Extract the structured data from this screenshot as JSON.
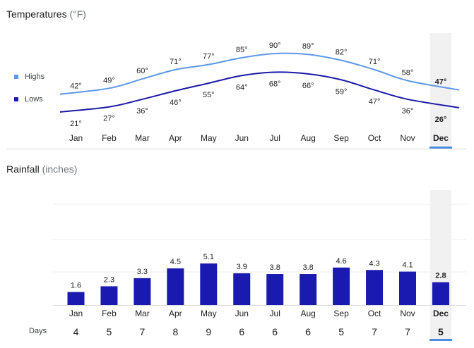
{
  "temperatures": {
    "title": "Temperatures",
    "unit": "(°F)",
    "legend": {
      "highs": "Highs",
      "lows": "Lows"
    }
  },
  "rainfall": {
    "title": "Rainfall",
    "unit": "(inches)"
  },
  "days_label": "Days",
  "selected_month": "Dec",
  "colors": {
    "highs": "#5c98e9",
    "lows": "#1a1aa8",
    "bars": "#1a1ab0",
    "selected_band": "#f1f1f1",
    "selected_underline": "#4a8de0"
  },
  "chart_data": [
    {
      "type": "line",
      "title": "Temperatures (°F)",
      "categories": [
        "Jan",
        "Feb",
        "Mar",
        "Apr",
        "May",
        "Jun",
        "Jul",
        "Aug",
        "Sep",
        "Oct",
        "Nov",
        "Dec"
      ],
      "series": [
        {
          "name": "Highs",
          "values": [
            42,
            49,
            60,
            71,
            77,
            85,
            90,
            89,
            82,
            71,
            58,
            47
          ],
          "labels": [
            "42°",
            "49°",
            "60°",
            "71°",
            "77°",
            "85°",
            "90°",
            "89°",
            "82°",
            "71°",
            "58°",
            "47°"
          ]
        },
        {
          "name": "Lows",
          "values": [
            21,
            27,
            36,
            46,
            55,
            64,
            68,
            66,
            59,
            47,
            36,
            26
          ],
          "labels": [
            "21°",
            "27°",
            "36°",
            "46°",
            "55°",
            "64°",
            "68°",
            "66°",
            "59°",
            "47°",
            "36°",
            "26°"
          ]
        }
      ]
    },
    {
      "type": "bar",
      "title": "Rainfall (inches)",
      "categories": [
        "Jan",
        "Feb",
        "Mar",
        "Apr",
        "May",
        "Jun",
        "Jul",
        "Aug",
        "Sep",
        "Oct",
        "Nov",
        "Dec"
      ],
      "values": [
        1.6,
        2.3,
        3.3,
        4.5,
        5.1,
        3.9,
        3.8,
        3.8,
        4.6,
        4.3,
        4.1,
        2.8
      ],
      "labels": [
        "1.6",
        "2.3",
        "3.3",
        "4.5",
        "5.1",
        "3.9",
        "3.8",
        "3.8",
        "4.6",
        "4.3",
        "4.1",
        "2.8"
      ],
      "ylim": [
        0,
        7.5
      ]
    },
    {
      "type": "table",
      "title": "Days",
      "categories": [
        "Jan",
        "Feb",
        "Mar",
        "Apr",
        "May",
        "Jun",
        "Jul",
        "Aug",
        "Sep",
        "Oct",
        "Nov",
        "Dec"
      ],
      "values": [
        4,
        5,
        7,
        8,
        9,
        6,
        6,
        6,
        5,
        7,
        7,
        5
      ],
      "labels": [
        "4",
        "5",
        "7",
        "8",
        "9",
        "6",
        "6",
        "6",
        "5",
        "7",
        "7",
        "5"
      ]
    }
  ]
}
